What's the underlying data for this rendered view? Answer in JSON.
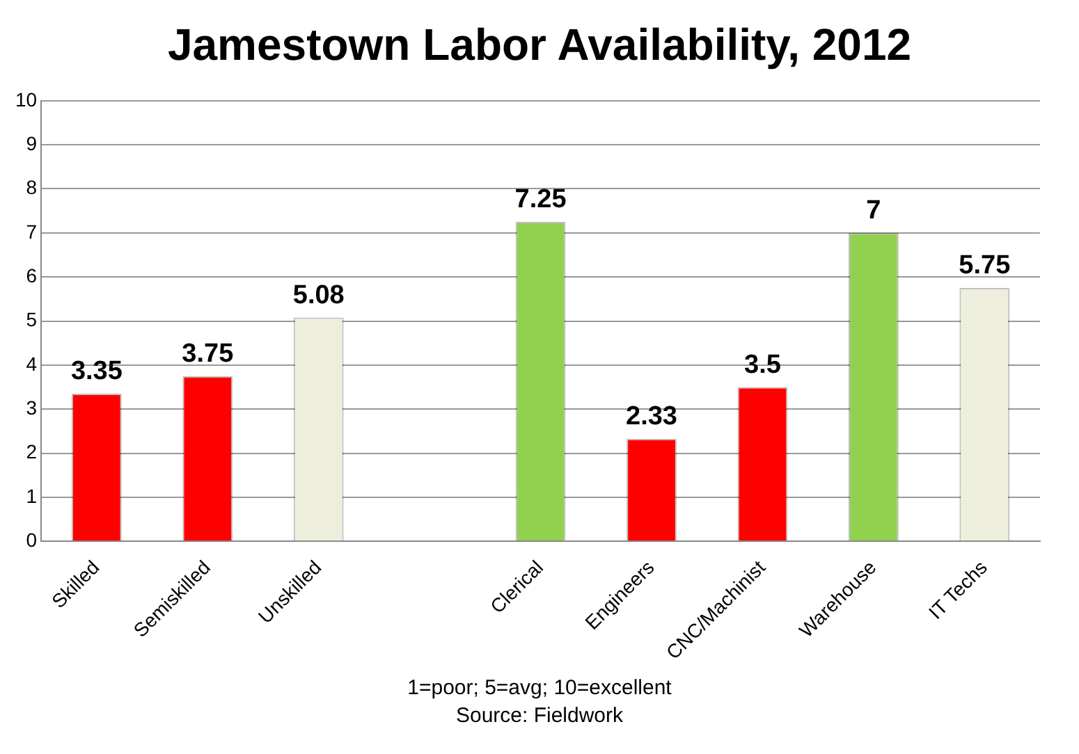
{
  "chart_data": {
    "type": "bar",
    "title": "Jamestown Labor Availability, 2012",
    "categories": [
      "Skilled",
      "Semiskilled",
      "Unskilled",
      null,
      "Clerical",
      "Engineers",
      "CNC/Machinist",
      "Warehouse",
      "IT Techs"
    ],
    "values": [
      3.35,
      3.75,
      5.08,
      null,
      7.25,
      2.33,
      3.5,
      7,
      5.75
    ],
    "colors": [
      "#ff0000",
      "#ff0000",
      "#eeeedd",
      null,
      "#92d050",
      "#ff0000",
      "#ff0000",
      "#92d050",
      "#eeeedd"
    ],
    "ylim": [
      0,
      10
    ],
    "yticks": [
      0,
      1,
      2,
      3,
      4,
      5,
      6,
      7,
      8,
      9,
      10
    ],
    "grid": "y",
    "data_labels": true,
    "legend": false,
    "annotations": [
      "1=poor; 5=avg; 10=excellent",
      "Source: Fieldwork"
    ]
  }
}
